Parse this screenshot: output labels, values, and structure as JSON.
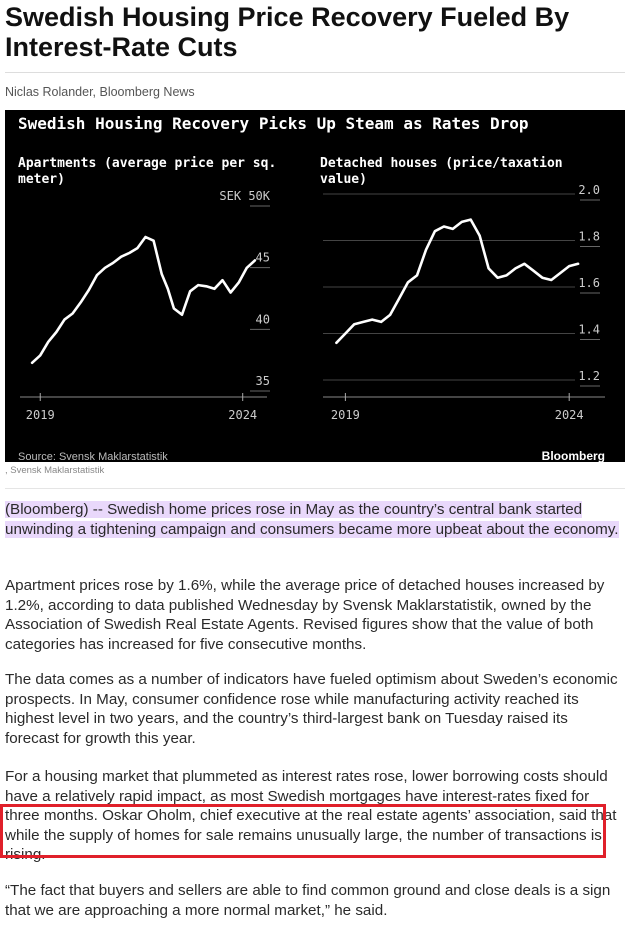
{
  "article": {
    "headline": "Swedish Housing Price Recovery Fueled By Interest-Rate Cuts",
    "byline": "Niclas Rolander, Bloomberg News",
    "image_caption": ", Svensk Maklarstatistik",
    "lead_highlighted": "(Bloomberg) -- Swedish home prices rose in May as the country’s central bank started unwinding a tightening campaign and consumers became more upbeat about the economy.",
    "paragraph_2": "Apartment prices rose by 1.6%, while the average price of detached houses increased by 1.2%, according to data published Wednesday by Svensk Maklarstatistik, owned by the Association of Swedish Real Estate Agents. Revised figures show that the value of both categories has increased for five consecutive months.",
    "paragraph_3": "The data comes as a number of indicators have fueled optimism about Sweden’s economic prospects. In May, consumer confidence rose while manufacturing activity reached its highest level in two years, and the country’s third-largest bank on Tuesday raised its forecast for growth this year.",
    "paragraph_4": "For a housing market that plummeted as interest rates rose, lower borrowing costs should have a relatively rapid impact, as most Swedish mortgages have interest-rates fixed for three months. Oskar Oholm, chief executive at the real estate agents’ association, said that while the supply of homes for sale remains unusually large, the number of transactions is rising.",
    "paragraph_5": "“The fact that buyers and sellers are able to find common ground and close deals is a sign that we are approaching a more normal market,” he said."
  },
  "chart_image": {
    "title": "Swedish Housing Recovery Picks Up Steam as Rates Drop",
    "source": "Source: Svensk Maklarstatistik",
    "brand": "Bloomberg",
    "colors": {
      "background": "#000000",
      "line": "#ffffff",
      "grid": "#555555"
    }
  },
  "chart_data": [
    {
      "type": "line",
      "title": "Apartments (average price per sq. meter)",
      "yunit_label": "SEK 50K",
      "yticks": [
        "50",
        "45",
        "40",
        "35"
      ],
      "ylim": [
        35,
        50
      ],
      "xticks": [
        "2019",
        "2024"
      ],
      "series": [
        {
          "x": [
            2018.8,
            2019.0,
            2019.2,
            2019.4,
            2019.6,
            2019.8,
            2020.0,
            2020.2,
            2020.4,
            2020.6,
            2020.8,
            2021.0,
            2021.2,
            2021.4,
            2021.6,
            2021.8,
            2022.0,
            2022.15,
            2022.3,
            2022.5,
            2022.7,
            2022.9,
            2023.1,
            2023.3,
            2023.5,
            2023.7,
            2023.9,
            2024.1,
            2024.3
          ],
          "values": [
            36.8,
            37.4,
            38.5,
            39.3,
            40.3,
            40.8,
            41.7,
            42.7,
            43.9,
            44.5,
            44.9,
            45.4,
            45.7,
            46.1,
            47.0,
            46.7,
            44.0,
            42.8,
            41.2,
            40.7,
            42.6,
            43.1,
            43.0,
            42.8,
            43.5,
            42.5,
            43.3,
            44.5,
            45.1
          ]
        }
      ],
      "grid": false
    },
    {
      "type": "line",
      "title": "Detached houses (price/taxation value)",
      "yticks": [
        "2.0",
        "1.8",
        "1.6",
        "1.4",
        "1.2"
      ],
      "ylim": [
        1.2,
        2.0
      ],
      "xticks": [
        "2019",
        "2024"
      ],
      "series": [
        {
          "x": [
            2018.8,
            2019.0,
            2019.2,
            2019.4,
            2019.6,
            2019.8,
            2020.0,
            2020.2,
            2020.4,
            2020.6,
            2020.8,
            2021.0,
            2021.2,
            2021.4,
            2021.6,
            2021.8,
            2022.0,
            2022.2,
            2022.4,
            2022.6,
            2022.8,
            2023.0,
            2023.2,
            2023.4,
            2023.6,
            2023.8,
            2024.0,
            2024.2
          ],
          "values": [
            1.36,
            1.4,
            1.44,
            1.45,
            1.46,
            1.45,
            1.48,
            1.55,
            1.62,
            1.65,
            1.76,
            1.84,
            1.86,
            1.85,
            1.88,
            1.89,
            1.82,
            1.68,
            1.64,
            1.65,
            1.68,
            1.7,
            1.67,
            1.64,
            1.63,
            1.66,
            1.69,
            1.7
          ]
        }
      ],
      "grid": true
    }
  ]
}
